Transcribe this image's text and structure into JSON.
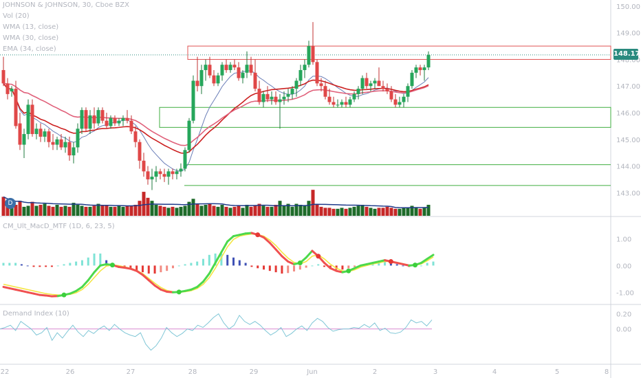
{
  "legend": {
    "symbol": "JOHNSON & JOHNSON, 30, Cboe BZX",
    "vol": "Vol (20)",
    "wma13": "WMA (13, close)",
    "wma30": "WMA (30, close)",
    "ema34": "EMA (34, close)"
  },
  "price_tag": "148.17",
  "events_badge": "D",
  "chart_data": [
    {
      "type": "candlestick",
      "title": "JOHNSON & JOHNSON, 30, Cboe BZX",
      "ylim": [
        142.7,
        150.1
      ],
      "price_ticks": [
        "150.00",
        "149.00",
        "148.00",
        "147.00",
        "146.00",
        "145.00",
        "144.00",
        "143.00"
      ],
      "last_price": 148.17,
      "x_ticks": [
        "22",
        "26",
        "27",
        "28",
        "29",
        "Jun",
        "2",
        "3",
        "4",
        "5",
        "8"
      ],
      "candles": [
        [
          147.6,
          148.1,
          147.0,
          147.1
        ],
        [
          147.1,
          147.3,
          146.5,
          146.7
        ],
        [
          146.8,
          147.0,
          146.6,
          146.9
        ],
        [
          146.9,
          147.2,
          145.4,
          145.5
        ],
        [
          145.6,
          146.0,
          144.6,
          144.8
        ],
        [
          144.8,
          145.4,
          144.3,
          145.2
        ],
        [
          145.2,
          146.5,
          145.0,
          146.3
        ],
        [
          146.3,
          146.5,
          145.1,
          145.2
        ],
        [
          145.2,
          145.6,
          145.0,
          145.4
        ],
        [
          145.4,
          145.6,
          144.9,
          145.1
        ],
        [
          145.1,
          145.4,
          144.9,
          145.3
        ],
        [
          145.3,
          145.4,
          144.7,
          144.9
        ],
        [
          144.9,
          145.2,
          144.6,
          144.8
        ],
        [
          144.8,
          145.1,
          144.6,
          145.0
        ],
        [
          145.0,
          145.2,
          144.6,
          144.7
        ],
        [
          144.7,
          145.1,
          144.5,
          144.9
        ],
        [
          144.9,
          145.1,
          144.2,
          144.4
        ],
        [
          144.4,
          144.9,
          144.1,
          144.7
        ],
        [
          144.7,
          145.6,
          144.5,
          145.4
        ],
        [
          145.4,
          146.2,
          145.2,
          146.1
        ],
        [
          146.1,
          146.2,
          145.3,
          145.4
        ],
        [
          145.4,
          146.1,
          145.2,
          145.9
        ],
        [
          145.9,
          146.2,
          145.4,
          145.6
        ],
        [
          145.6,
          146.2,
          145.5,
          146.1
        ],
        [
          146.1,
          146.2,
          145.6,
          145.7
        ],
        [
          145.7,
          146.0,
          145.4,
          145.5
        ],
        [
          145.5,
          145.9,
          145.4,
          145.8
        ],
        [
          145.8,
          145.9,
          145.5,
          145.6
        ],
        [
          145.6,
          145.8,
          145.5,
          145.7
        ],
        [
          145.7,
          145.9,
          145.5,
          145.8
        ],
        [
          145.8,
          146.1,
          145.6,
          145.7
        ],
        [
          145.7,
          145.9,
          145.2,
          145.3
        ],
        [
          145.3,
          145.5,
          144.7,
          144.9
        ],
        [
          144.9,
          145.0,
          143.9,
          144.2
        ],
        [
          144.2,
          144.5,
          143.6,
          143.8
        ],
        [
          143.8,
          144.0,
          143.3,
          143.5
        ],
        [
          143.5,
          143.9,
          143.1,
          143.6
        ],
        [
          143.6,
          144.0,
          143.4,
          143.8
        ],
        [
          143.8,
          143.9,
          143.5,
          143.7
        ],
        [
          143.7,
          143.9,
          143.4,
          143.6
        ],
        [
          143.6,
          143.9,
          143.3,
          143.8
        ],
        [
          143.8,
          143.9,
          143.5,
          143.7
        ],
        [
          143.7,
          143.9,
          143.5,
          143.8
        ],
        [
          143.8,
          144.1,
          143.6,
          143.9
        ],
        [
          143.9,
          144.7,
          143.8,
          144.6
        ],
        [
          144.6,
          145.8,
          144.5,
          145.7
        ],
        [
          145.7,
          147.4,
          145.6,
          147.2
        ],
        [
          147.2,
          148.1,
          146.8,
          147.0
        ],
        [
          147.0,
          147.8,
          146.7,
          147.6
        ],
        [
          147.6,
          148.0,
          147.2,
          147.8
        ],
        [
          147.8,
          148.1,
          147.3,
          147.4
        ],
        [
          147.4,
          147.6,
          147.0,
          147.1
        ],
        [
          147.1,
          147.5,
          147.0,
          147.4
        ],
        [
          147.4,
          147.9,
          147.2,
          147.8
        ],
        [
          147.8,
          148.0,
          147.5,
          147.6
        ],
        [
          147.6,
          147.9,
          147.5,
          147.8
        ],
        [
          147.8,
          148.0,
          147.6,
          147.7
        ],
        [
          147.7,
          147.9,
          147.2,
          147.3
        ],
        [
          147.3,
          147.6,
          147.1,
          147.5
        ],
        [
          147.5,
          148.3,
          147.3,
          147.8
        ],
        [
          147.8,
          148.1,
          147.4,
          147.5
        ],
        [
          147.5,
          148.0,
          146.8,
          146.9
        ],
        [
          146.9,
          147.2,
          146.3,
          146.4
        ],
        [
          146.4,
          146.8,
          146.2,
          146.7
        ],
        [
          146.7,
          147.0,
          146.4,
          146.5
        ],
        [
          146.5,
          146.8,
          146.3,
          146.6
        ],
        [
          146.6,
          146.8,
          146.3,
          146.4
        ],
        [
          146.4,
          146.7,
          145.4,
          146.5
        ],
        [
          146.5,
          146.8,
          146.3,
          146.6
        ],
        [
          146.6,
          146.9,
          146.4,
          146.7
        ],
        [
          146.7,
          147.0,
          146.5,
          146.9
        ],
        [
          146.9,
          147.3,
          146.6,
          147.2
        ],
        [
          147.2,
          147.8,
          147.0,
          147.6
        ],
        [
          147.6,
          148.0,
          147.3,
          147.8
        ],
        [
          147.8,
          148.7,
          147.7,
          148.5
        ],
        [
          148.5,
          149.4,
          147.8,
          147.9
        ],
        [
          147.9,
          148.0,
          147.0,
          147.1
        ],
        [
          147.1,
          147.3,
          146.8,
          147.0
        ],
        [
          147.0,
          147.2,
          146.5,
          146.6
        ],
        [
          146.6,
          146.9,
          146.3,
          146.4
        ],
        [
          146.4,
          146.6,
          146.2,
          146.3
        ],
        [
          146.3,
          146.5,
          146.2,
          146.3
        ],
        [
          146.3,
          146.5,
          146.2,
          146.4
        ],
        [
          146.4,
          146.6,
          146.2,
          146.3
        ],
        [
          146.3,
          146.6,
          146.2,
          146.5
        ],
        [
          146.5,
          146.8,
          146.4,
          146.7
        ],
        [
          146.7,
          147.0,
          146.5,
          146.9
        ],
        [
          146.9,
          147.4,
          146.7,
          147.3
        ],
        [
          147.3,
          147.5,
          146.9,
          147.0
        ],
        [
          147.0,
          147.2,
          146.8,
          147.1
        ],
        [
          147.1,
          147.3,
          146.9,
          147.2
        ],
        [
          147.2,
          147.7,
          147.0,
          147.0
        ],
        [
          147.0,
          147.2,
          146.8,
          146.9
        ],
        [
          146.9,
          147.1,
          146.7,
          146.8
        ],
        [
          146.8,
          147.0,
          146.4,
          146.5
        ],
        [
          146.5,
          146.7,
          146.2,
          146.3
        ],
        [
          146.3,
          146.6,
          146.2,
          146.4
        ],
        [
          146.4,
          146.7,
          146.2,
          146.6
        ],
        [
          146.6,
          147.1,
          146.4,
          147.0
        ],
        [
          147.0,
          147.6,
          146.9,
          147.5
        ],
        [
          147.5,
          147.8,
          147.3,
          147.7
        ],
        [
          147.7,
          147.8,
          147.4,
          147.6
        ],
        [
          147.6,
          147.8,
          147.2,
          147.7
        ],
        [
          147.7,
          148.3,
          147.6,
          148.17
        ]
      ],
      "volume": [
        38,
        30,
        26,
        22,
        30,
        18,
        20,
        28,
        20,
        22,
        24,
        20,
        18,
        22,
        18,
        20,
        18,
        26,
        22,
        20,
        18,
        18,
        20,
        24,
        22,
        20,
        18,
        18,
        20,
        18,
        20,
        20,
        22,
        30,
        48,
        36,
        30,
        22,
        20,
        18,
        16,
        18,
        16,
        18,
        20,
        28,
        34,
        24,
        20,
        22,
        24,
        20,
        18,
        22,
        18,
        16,
        18,
        20,
        16,
        22,
        18,
        20,
        24,
        20,
        18,
        18,
        22,
        30,
        20,
        24,
        18,
        24,
        22,
        20,
        30,
        52,
        22,
        18,
        16,
        16,
        14,
        14,
        16,
        14,
        16,
        18,
        20,
        22,
        18,
        16,
        14,
        16,
        16,
        18,
        16,
        14,
        14,
        16,
        16,
        20,
        16,
        14,
        16,
        22
      ],
      "boxes": [
        {
          "from": 148.5,
          "to": 148.0,
          "color": "#e05252"
        },
        {
          "from": 146.2,
          "to": 145.45,
          "color": "#3fae3f"
        }
      ],
      "levels": [
        {
          "value": 144.05,
          "color": "#3fae3f"
        },
        {
          "value": 143.27,
          "color": "#3fae3f"
        }
      ],
      "series": [
        {
          "name": "WMA (13, close)",
          "color": "#6b7fb8"
        },
        {
          "name": "WMA (30, close)",
          "color": "#cc2020"
        },
        {
          "name": "EMA (34, close)",
          "color": "#e0607a"
        }
      ]
    },
    {
      "type": "line",
      "title": "CM_Ult_MacD_MTF (1D, 6, 23, 5)",
      "ylim": [
        -1.25,
        1.45
      ],
      "y_ticks": [
        "1.00",
        "0.00",
        "-1.00"
      ],
      "macd": [
        -0.8,
        -0.85,
        -0.9,
        -0.95,
        -1.0,
        -1.05,
        -1.1,
        -1.12,
        -1.15,
        -1.14,
        -1.1,
        -1.05,
        -0.95,
        -0.8,
        -0.55,
        -0.25,
        0.0,
        0.05,
        0.02,
        -0.05,
        -0.08,
        -0.12,
        -0.2,
        -0.35,
        -0.55,
        -0.75,
        -0.9,
        -0.98,
        -1.0,
        -0.99,
        -0.95,
        -0.9,
        -0.8,
        -0.6,
        -0.3,
        0.1,
        0.5,
        0.9,
        1.1,
        1.15,
        1.2,
        1.22,
        1.15,
        1.05,
        0.85,
        0.6,
        0.35,
        0.15,
        0.05,
        0.1,
        0.3,
        0.55,
        0.35,
        0.1,
        -0.1,
        -0.2,
        -0.25,
        -0.2,
        -0.1,
        0.0,
        0.05,
        0.1,
        0.15,
        0.2,
        0.15,
        0.1,
        0.05,
        0.0,
        0.02,
        0.1,
        0.25,
        0.4
      ],
      "signal": [
        -0.7,
        -0.75,
        -0.8,
        -0.85,
        -0.9,
        -0.95,
        -1.0,
        -1.05,
        -1.08,
        -1.1,
        -1.1,
        -1.08,
        -1.02,
        -0.9,
        -0.7,
        -0.45,
        -0.2,
        -0.02,
        0.02,
        0.0,
        -0.05,
        -0.1,
        -0.18,
        -0.3,
        -0.48,
        -0.66,
        -0.82,
        -0.93,
        -0.98,
        -1.0,
        -0.98,
        -0.94,
        -0.86,
        -0.7,
        -0.45,
        -0.1,
        0.3,
        0.7,
        0.98,
        1.1,
        1.15,
        1.18,
        1.16,
        1.1,
        0.95,
        0.75,
        0.5,
        0.28,
        0.12,
        0.06,
        0.15,
        0.35,
        0.4,
        0.25,
        0.05,
        -0.1,
        -0.2,
        -0.22,
        -0.16,
        -0.06,
        0.0,
        0.06,
        0.1,
        0.15,
        0.16,
        0.12,
        0.07,
        0.02,
        0.01,
        0.06,
        0.18,
        0.32
      ],
      "histogram": [
        0.1,
        0.1,
        0.1,
        0.05,
        0.0,
        -0.05,
        -0.05,
        -0.05,
        -0.05,
        0.0,
        0.05,
        0.1,
        0.15,
        0.2,
        0.3,
        0.45,
        0.45,
        0.2,
        0.05,
        -0.05,
        -0.1,
        -0.15,
        -0.2,
        -0.25,
        -0.3,
        -0.3,
        -0.25,
        -0.2,
        -0.1,
        0.0,
        0.05,
        0.1,
        0.15,
        0.25,
        0.4,
        0.45,
        0.45,
        0.4,
        0.3,
        0.2,
        0.1,
        -0.05,
        -0.1,
        -0.15,
        -0.2,
        -0.25,
        -0.3,
        -0.28,
        -0.22,
        -0.15,
        -0.08,
        0.0,
        0.05,
        -0.05,
        -0.1,
        -0.15,
        -0.15,
        -0.1,
        -0.05,
        0.0,
        0.05,
        0.08,
        0.12,
        0.15,
        0.1,
        0.05,
        0.0,
        -0.05,
        -0.05,
        0.0,
        0.1,
        0.15
      ]
    },
    {
      "type": "line",
      "title": "Demand Index (10)",
      "ylim": [
        -0.42,
        0.26
      ],
      "y_ticks": [
        "0.20",
        "0.00"
      ],
      "values": [
        0.0,
        0.02,
        0.05,
        -0.02,
        0.1,
        0.05,
        0.0,
        -0.08,
        -0.05,
        0.02,
        -0.15,
        -0.05,
        -0.12,
        -0.03,
        0.05,
        -0.04,
        -0.1,
        -0.02,
        -0.06,
        0.0,
        0.04,
        -0.02,
        0.06,
        0.0,
        -0.05,
        -0.08,
        -0.1,
        -0.05,
        -0.2,
        -0.28,
        -0.22,
        -0.12,
        0.02,
        -0.05,
        -0.1,
        -0.06,
        0.0,
        -0.02,
        0.05,
        0.02,
        0.08,
        0.15,
        0.2,
        0.08,
        0.0,
        0.05,
        0.18,
        0.1,
        0.06,
        0.1,
        0.05,
        -0.02,
        -0.08,
        -0.04,
        0.02,
        -0.1,
        -0.06,
        0.0,
        0.04,
        -0.02,
        0.08,
        0.14,
        0.1,
        0.02,
        -0.03,
        -0.01,
        0.0,
        0.0,
        0.02,
        0.01,
        0.06,
        0.02,
        0.08,
        -0.02,
        0.01,
        -0.05,
        -0.06,
        -0.04,
        0.02,
        0.12,
        0.08,
        0.1,
        0.04,
        0.12
      ]
    }
  ]
}
